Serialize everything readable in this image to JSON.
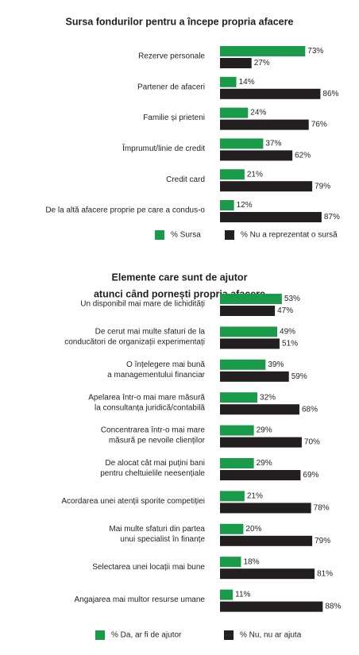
{
  "chart_data": [
    {
      "type": "hbar",
      "title": [
        "Sursa fondurilor pentru a începe propria afacere"
      ],
      "categories": [
        [
          "Rezerve personale"
        ],
        [
          "Partener de afaceri"
        ],
        [
          "Familie și prieteni"
        ],
        [
          "Împrumut/linie de credit"
        ],
        [
          "Credit card"
        ],
        [
          "De la altă afacere proprie pe care a condus-o"
        ]
      ],
      "series": [
        {
          "name": "% Sursa",
          "color": "#1a9b4a",
          "values": [
            73,
            14,
            24,
            37,
            21,
            12
          ],
          "value_labels": [
            "73%",
            "14%",
            "24%",
            "37%",
            "21%",
            "12%"
          ]
        },
        {
          "name": "% Nu a reprezentat o sursă",
          "color": "#231f20",
          "values": [
            27,
            86,
            76,
            62,
            79,
            87
          ],
          "value_labels": [
            "27%",
            "86%",
            "76%",
            "62%",
            "79%",
            "87%"
          ]
        }
      ]
    },
    {
      "type": "hbar",
      "title": [
        "Elemente care sunt de ajutor",
        "atunci când pornești propria afacere"
      ],
      "categories": [
        [
          "Un disponibil mai mare de lichidități"
        ],
        [
          "De cerut mai multe sfaturi de la",
          "conducători de organizații experimentați"
        ],
        [
          "O înțelegere mai bună",
          "a managementului financiar"
        ],
        [
          "Apelarea într-o mai mare măsură",
          "la consultanța juridică/contabilă"
        ],
        [
          "Concentrarea într-o mai mare",
          "măsură pe nevoile clienților"
        ],
        [
          "De alocat cât mai puțini bani",
          "pentru cheltuielile neesențiale"
        ],
        [
          "Acordarea unei atenții sporite competiției"
        ],
        [
          "Mai multe sfaturi din partea",
          "unui specialist în finanțe"
        ],
        [
          "Selectarea unei locații mai bune"
        ],
        [
          "Angajarea mai multor resurse umane"
        ]
      ],
      "series": [
        {
          "name": "% Da, ar fi de ajutor",
          "color": "#1a9b4a",
          "values": [
            53,
            49,
            39,
            32,
            29,
            29,
            21,
            20,
            18,
            11
          ],
          "value_labels": [
            "53%",
            "49%",
            "39%",
            "32%",
            "29%",
            "29%",
            "21%",
            "20%",
            "18%",
            "11%"
          ]
        },
        {
          "name": "% Nu, nu ar ajuta",
          "color": "#231f20",
          "values": [
            47,
            51,
            59,
            68,
            70,
            69,
            78,
            79,
            81,
            88
          ],
          "value_labels": [
            "47%",
            "51%",
            "59%",
            "68%",
            "70%",
            "69%",
            "78%",
            "79%",
            "81%",
            "88%"
          ]
        }
      ]
    }
  ]
}
